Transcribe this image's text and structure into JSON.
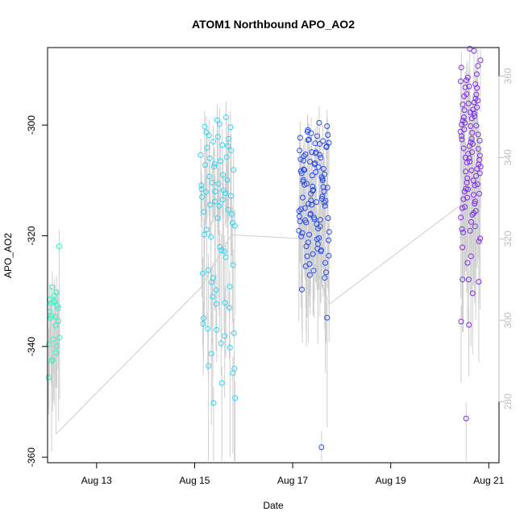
{
  "chart_data": {
    "type": "scatter",
    "title": "ATOM1 Northbound APO_AO2",
    "xlabel": "Date",
    "ylabel": "APO_AO2",
    "x_ticks": [
      "Aug 13",
      "Aug 15",
      "Aug 17",
      "Aug 19",
      "Aug 21"
    ],
    "x_range": [
      "2023-08-12T00:00",
      "2023-08-21T05:00"
    ],
    "ylim": [
      -361,
      -286
    ],
    "y_ticks": [
      -360,
      -340,
      -320,
      -300
    ],
    "ylim_right": [
      265,
      367
    ],
    "y_ticks_right": [
      280,
      300,
      320,
      340,
      360
    ],
    "secondary_series_color": "#cccccc",
    "secondary_trend": [
      {
        "x": "2023-08-12T04:00",
        "y": 272
      },
      {
        "x": "2023-08-15T03:00",
        "y": 308
      },
      {
        "x": "2023-08-15T18:00",
        "y": 321
      },
      {
        "x": "2023-08-17T06:00",
        "y": 320
      },
      {
        "x": "2023-08-17T18:00",
        "y": 304
      },
      {
        "x": "2023-08-20T12:00",
        "y": 329
      }
    ],
    "clusters": [
      {
        "color": "#2ef5c6",
        "start": "2023-08-12T00:30",
        "end": "2023-08-12T06:00",
        "values": [
          -345.6,
          -336.2,
          -334.5,
          -333.1,
          -332.0,
          -331.5,
          -330.2,
          -329.3,
          -321.9,
          -331.8,
          -334.9,
          -332.6,
          -338.7,
          -339.6,
          -341.1,
          -342.6,
          -335.4,
          -330.8,
          -333.7,
          -339.9,
          -342.4,
          -338.4,
          -334.6,
          -332.2
        ]
      },
      {
        "color": "#2ad6f3",
        "start": "2023-08-15T03:00",
        "end": "2023-08-15T20:00",
        "values": [
          -350.2,
          -349.3,
          -346.6,
          -343.5,
          -340.2,
          -337.0,
          -334.9,
          -332.1,
          -328.4,
          -325.3,
          -322.0,
          -318.9,
          -315.3,
          -313.8,
          -311.6,
          -309.0,
          -306.0,
          -304.6,
          -302.1,
          -300.3,
          -298.6,
          -327.6,
          -344.0,
          -339.4,
          -336.8,
          -333.0,
          -329.8,
          -326.8,
          -322.8,
          -320.2,
          -317.7,
          -314.6,
          -312.1,
          -309.9,
          -307.5,
          -305.4,
          -303.6,
          -301.9,
          -300.4,
          -299.1,
          -315.7,
          -312.3,
          -310.4,
          -308.1,
          -306.5,
          -304.1,
          -302.5,
          -312.0,
          -313.0,
          -311.8,
          -314.4,
          -316.1,
          -310.6,
          -307.2,
          -305.8,
          -303.0,
          -318.2,
          -322.6,
          -326.2,
          -329.2,
          -332.3,
          -335.9,
          -338.1,
          -341.3,
          -344.8,
          -299.8,
          -301.3,
          -303.8,
          -307.0,
          -310.9,
          -313.5,
          -309.3,
          -312.8,
          -316.8,
          -319.8,
          -323.9,
          -331.0,
          -337.6
        ]
      },
      {
        "color": "#2648ee",
        "start": "2023-08-17T03:00",
        "end": "2023-08-17T18:00",
        "values": [
          -358.2,
          -327.1,
          -323.6,
          -320.6,
          -317.2,
          -314.0,
          -311.1,
          -308.3,
          -305.4,
          -302.7,
          -300.2,
          -303.3,
          -306.4,
          -309.7,
          -312.4,
          -315.5,
          -318.7,
          -321.9,
          -324.9,
          -326.3,
          -329.7,
          -322.8,
          -319.8,
          -316.8,
          -313.9,
          -310.8,
          -307.9,
          -304.9,
          -302.3,
          -299.6,
          -301.2,
          -304.0,
          -307.1,
          -310.2,
          -313.3,
          -316.2,
          -319.3,
          -322.3,
          -325.5,
          -327.6,
          -323.3,
          -320.1,
          -317.1,
          -314.2,
          -311.3,
          -308.5,
          -305.6,
          -302.9,
          -301.5,
          -304.6,
          -307.6,
          -310.6,
          -313.7,
          -316.7,
          -319.5,
          -322.6,
          -325.1,
          -320.8,
          -317.9,
          -315.0,
          -312.0,
          -309.1,
          -306.2,
          -303.4,
          -300.9,
          -303.8,
          -306.9,
          -309.9,
          -312.9,
          -316.0,
          -319.1,
          -321.5,
          -317.6,
          -314.6,
          -311.7,
          -308.7,
          -305.9,
          -302.6,
          -301.8,
          -304.9,
          -308.1,
          -311.2,
          -314.4,
          -317.4,
          -320.4,
          -323.7,
          -326.6,
          -317.0,
          -313.1,
          -309.4,
          -306.6,
          -303.2,
          -302.0,
          -305.3,
          -308.9,
          -311.9,
          -315.2,
          -318.3,
          -321.2,
          -334.8,
          -305.1,
          -308.0,
          -310.0,
          -313.6,
          -316.5
        ]
      },
      {
        "color": "#7b2cf0",
        "start": "2023-08-20T10:00",
        "end": "2023-08-20T20:00",
        "values": [
          -322.1,
          -318.3,
          -313.1,
          -308.7,
          -304.9,
          -300.8,
          -296.8,
          -293.0,
          -289.6,
          -286.6,
          -353.0,
          -328.3,
          -323.7,
          -319.4,
          -315.5,
          -311.6,
          -307.5,
          -303.4,
          -299.6,
          -295.6,
          -286.2,
          -318.8,
          -314.2,
          -310.4,
          -306.3,
          -302.5,
          -298.6,
          -294.5,
          -327.9,
          -316.7,
          -312.6,
          -308.4,
          -304.3,
          -300.2,
          -296.3,
          -292.6,
          -324.9,
          -320.5,
          -316.2,
          -312.0,
          -307.9,
          -303.8,
          -299.9,
          -295.9,
          -291.9,
          -321.0,
          -317.5,
          -313.4,
          -309.2,
          -305.2,
          -301.2,
          -297.2,
          -293.2,
          -289.3,
          -319.1,
          -315.0,
          -310.9,
          -306.8,
          -302.8,
          -298.8,
          -294.8,
          -290.8,
          -336.1,
          -335.5,
          -315.9,
          -311.5,
          -307.1,
          -303.1,
          -299.2,
          -295.2,
          -291.4,
          -288.3,
          -330.4,
          -314.8,
          -310.7,
          -306.6,
          -302.6,
          -298.4,
          -294.4,
          -312.4,
          -308.2,
          -304.2,
          -300.1,
          -296.1,
          -292.1,
          -310.0,
          -305.9,
          -301.7,
          -297.7,
          -327.9,
          -313.8,
          -309.6,
          -305.5,
          -301.4,
          -297.3,
          -293.3,
          -306.0,
          -302.0,
          -297.9
        ]
      }
    ]
  }
}
